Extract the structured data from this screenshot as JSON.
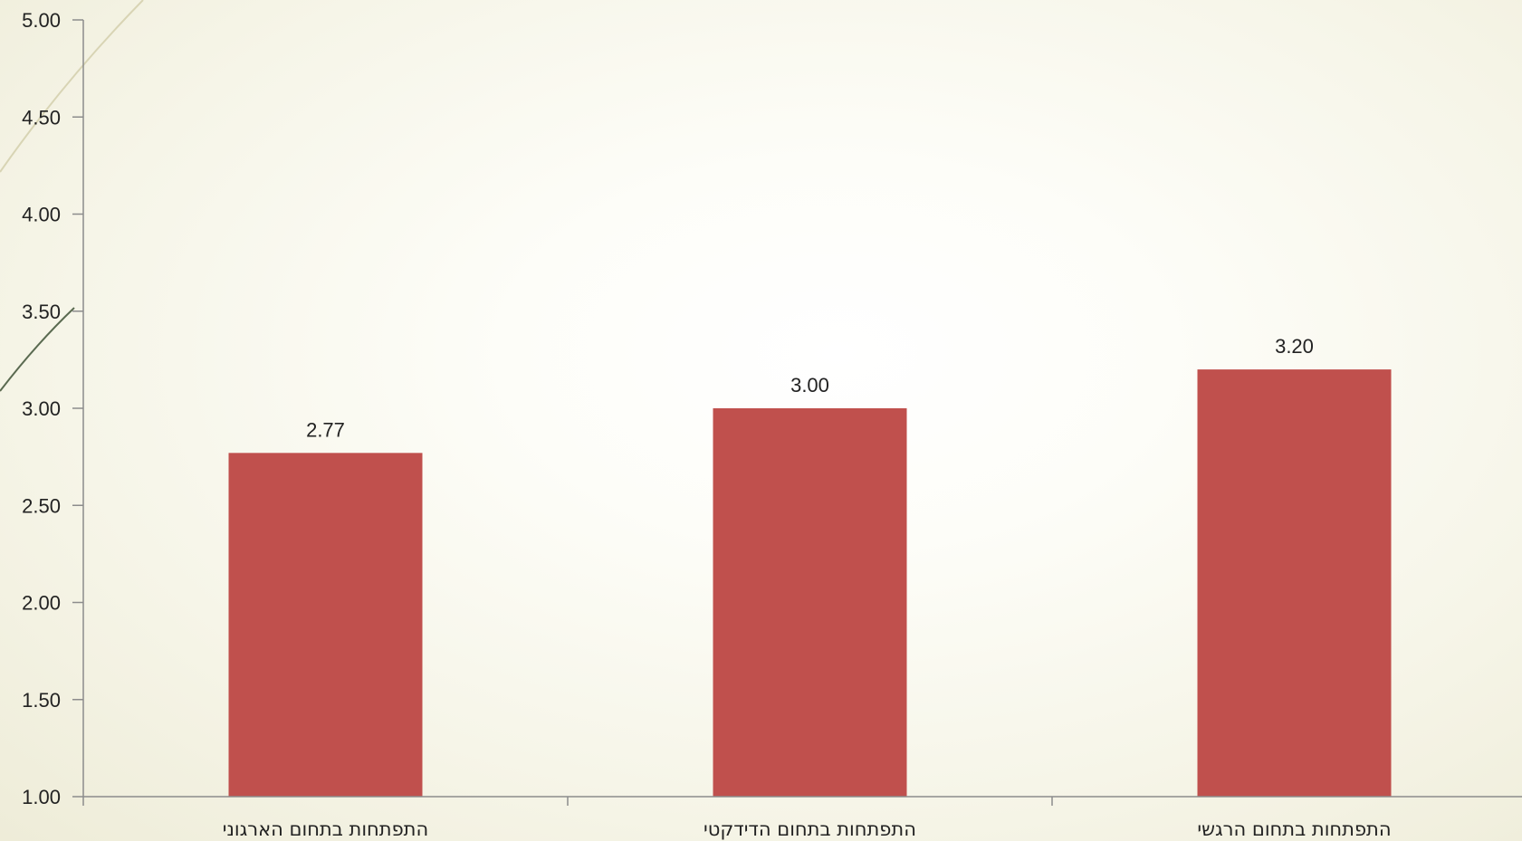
{
  "chart_data": {
    "type": "bar",
    "categories": [
      "התפתחות בתחום הארגוני",
      "התפתחות בתחום הדידקטי",
      "התפתחות בתחום הרגשי"
    ],
    "values": [
      2.77,
      3.0,
      3.2
    ],
    "data_labels": [
      "2.77",
      "3.00",
      "3.20"
    ],
    "y_ticks": [
      "1.00",
      "1.50",
      "2.00",
      "2.50",
      "3.00",
      "3.50",
      "4.00",
      "4.50",
      "5.00"
    ],
    "ylim": [
      1,
      5
    ],
    "title": "",
    "xlabel": "",
    "ylabel": "",
    "grid": false,
    "legend": "none",
    "bar_color": "#c0504d",
    "axis_color": "#8c8c8c"
  }
}
